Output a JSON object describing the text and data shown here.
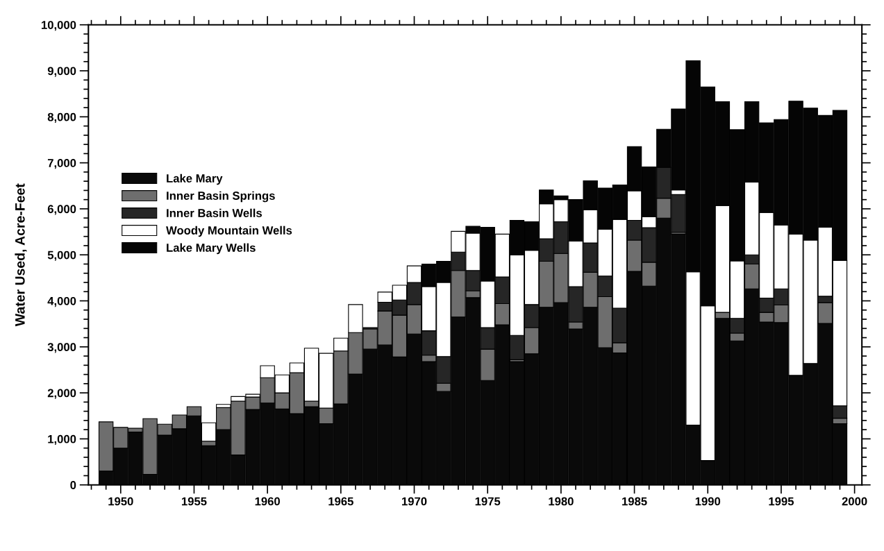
{
  "chart_data": {
    "type": "bar",
    "stacked": true,
    "ylabel": "Water Used, Acre-Feet",
    "x": [
      1949,
      1950,
      1951,
      1952,
      1953,
      1954,
      1955,
      1956,
      1957,
      1958,
      1959,
      1960,
      1961,
      1962,
      1963,
      1964,
      1965,
      1966,
      1967,
      1968,
      1969,
      1970,
      1971,
      1972,
      1973,
      1974,
      1975,
      1976,
      1977,
      1978,
      1979,
      1980,
      1981,
      1982,
      1983,
      1984,
      1985,
      1986,
      1987,
      1988,
      1989,
      1990,
      1991,
      1992,
      1993,
      1994,
      1995,
      1996,
      1997,
      1998,
      1999
    ],
    "series": [
      {
        "name": "Lake Mary",
        "color": "#0a0a0a",
        "values": [
          300,
          800,
          1150,
          230,
          1080,
          1220,
          1500,
          850,
          1200,
          650,
          1640,
          1780,
          1650,
          1550,
          1700,
          1330,
          1760,
          2410,
          2950,
          3040,
          2780,
          3280,
          2680,
          2030,
          3650,
          4070,
          2270,
          3480,
          2680,
          2850,
          3860,
          3960,
          3390,
          3860,
          2980,
          2870,
          4640,
          4320,
          5800,
          5450,
          1300,
          530,
          3620,
          3130,
          4260,
          3540,
          3530,
          2380,
          2640,
          3510,
          1330
        ]
      },
      {
        "name": "Inner Basin Springs",
        "color": "#6e6e6e",
        "values": [
          1070,
          450,
          80,
          1210,
          240,
          300,
          200,
          100,
          480,
          1170,
          270,
          550,
          350,
          890,
          120,
          340,
          1150,
          900,
          440,
          740,
          910,
          640,
          140,
          180,
          1010,
          150,
          680,
          460,
          40,
          570,
          1000,
          1070,
          150,
          760,
          1110,
          220,
          680,
          520,
          430,
          40,
          0,
          0,
          130,
          170,
          540,
          210,
          380,
          0,
          0,
          450,
          120
        ]
      },
      {
        "name": "Inner Basin Wells",
        "color": "#262626",
        "values": [
          0,
          0,
          0,
          0,
          0,
          0,
          0,
          0,
          0,
          0,
          0,
          0,
          0,
          0,
          0,
          0,
          0,
          0,
          30,
          190,
          330,
          480,
          530,
          580,
          400,
          440,
          470,
          580,
          530,
          500,
          490,
          690,
          770,
          640,
          450,
          750,
          430,
          750,
          670,
          820,
          0,
          0,
          0,
          320,
          200,
          310,
          350,
          0,
          0,
          140,
          270
        ]
      },
      {
        "name": "Woody Mountain Wells",
        "color": "#ffffff",
        "values": [
          0,
          0,
          0,
          0,
          0,
          0,
          0,
          400,
          70,
          100,
          60,
          260,
          390,
          210,
          1150,
          1190,
          280,
          610,
          0,
          220,
          320,
          360,
          960,
          1610,
          450,
          810,
          1010,
          930,
          1750,
          1180,
          760,
          480,
          990,
          720,
          1020,
          1930,
          640,
          240,
          0,
          100,
          3330,
          3360,
          2320,
          1250,
          1580,
          1860,
          1390,
          3070,
          2680,
          1500,
          3160
        ]
      },
      {
        "name": "Lake Mary Wells",
        "color": "#050505",
        "values": [
          0,
          0,
          0,
          0,
          0,
          0,
          0,
          0,
          0,
          0,
          0,
          0,
          0,
          0,
          0,
          0,
          0,
          0,
          0,
          0,
          0,
          0,
          490,
          460,
          0,
          150,
          1170,
          0,
          750,
          620,
          300,
          80,
          900,
          630,
          890,
          750,
          960,
          1080,
          830,
          1760,
          4590,
          4760,
          2260,
          2850,
          1750,
          1950,
          2290,
          2890,
          2870,
          2430,
          3260
        ]
      }
    ],
    "xlim": [
      1947.8,
      2000.5
    ],
    "xticks": [
      {
        "value": 1948,
        "label": null
      },
      {
        "value": 1949,
        "label": null
      },
      1950,
      {
        "value": 1951,
        "label": null
      },
      {
        "value": 1952,
        "label": null
      },
      {
        "value": 1953,
        "label": null
      },
      {
        "value": 1954,
        "label": null
      },
      1955,
      {
        "value": 1956,
        "label": null
      },
      {
        "value": 1957,
        "label": null
      },
      {
        "value": 1958,
        "label": null
      },
      {
        "value": 1959,
        "label": null
      },
      1960,
      {
        "value": 1961,
        "label": null
      },
      {
        "value": 1962,
        "label": null
      },
      {
        "value": 1963,
        "label": null
      },
      {
        "value": 1964,
        "label": null
      },
      1965,
      {
        "value": 1966,
        "label": null
      },
      {
        "value": 1967,
        "label": null
      },
      {
        "value": 1968,
        "label": null
      },
      {
        "value": 1969,
        "label": null
      },
      1970,
      {
        "value": 1971,
        "label": null
      },
      {
        "value": 1972,
        "label": null
      },
      {
        "value": 1973,
        "label": null
      },
      {
        "value": 1974,
        "label": null
      },
      1975,
      {
        "value": 1976,
        "label": null
      },
      {
        "value": 1977,
        "label": null
      },
      {
        "value": 1978,
        "label": null
      },
      {
        "value": 1979,
        "label": null
      },
      1980,
      {
        "value": 1981,
        "label": null
      },
      {
        "value": 1982,
        "label": null
      },
      {
        "value": 1983,
        "label": null
      },
      {
        "value": 1984,
        "label": null
      },
      1985,
      {
        "value": 1986,
        "label": null
      },
      {
        "value": 1987,
        "label": null
      },
      {
        "value": 1988,
        "label": null
      },
      {
        "value": 1989,
        "label": null
      },
      1990,
      {
        "value": 1991,
        "label": null
      },
      {
        "value": 1992,
        "label": null
      },
      {
        "value": 1993,
        "label": null
      },
      {
        "value": 1994,
        "label": null
      },
      1995,
      {
        "value": 1996,
        "label": null
      },
      {
        "value": 1997,
        "label": null
      },
      {
        "value": 1998,
        "label": null
      },
      {
        "value": 1999,
        "label": null
      },
      2000
    ],
    "ylim": [
      0,
      10000
    ],
    "yticks": [
      0,
      {
        "value": 200,
        "label": null
      },
      {
        "value": 400,
        "label": null
      },
      {
        "value": 600,
        "label": null
      },
      {
        "value": 800,
        "label": null
      },
      {
        "value": 1000,
        "label": "1,000"
      },
      {
        "value": 1200,
        "label": null
      },
      {
        "value": 1400,
        "label": null
      },
      {
        "value": 1600,
        "label": null
      },
      {
        "value": 1800,
        "label": null
      },
      {
        "value": 2000,
        "label": "2,000"
      },
      {
        "value": 2200,
        "label": null
      },
      {
        "value": 2400,
        "label": null
      },
      {
        "value": 2600,
        "label": null
      },
      {
        "value": 2800,
        "label": null
      },
      {
        "value": 3000,
        "label": "3,000"
      },
      {
        "value": 3200,
        "label": null
      },
      {
        "value": 3400,
        "label": null
      },
      {
        "value": 3600,
        "label": null
      },
      {
        "value": 3800,
        "label": null
      },
      {
        "value": 4000,
        "label": "4,000"
      },
      {
        "value": 4200,
        "label": null
      },
      {
        "value": 4400,
        "label": null
      },
      {
        "value": 4600,
        "label": null
      },
      {
        "value": 4800,
        "label": null
      },
      {
        "value": 5000,
        "label": "5,000"
      },
      {
        "value": 5200,
        "label": null
      },
      {
        "value": 5400,
        "label": null
      },
      {
        "value": 5600,
        "label": null
      },
      {
        "value": 5800,
        "label": null
      },
      {
        "value": 6000,
        "label": "6,000"
      },
      {
        "value": 6200,
        "label": null
      },
      {
        "value": 6400,
        "label": null
      },
      {
        "value": 6600,
        "label": null
      },
      {
        "value": 6800,
        "label": null
      },
      {
        "value": 7000,
        "label": "7,000"
      },
      {
        "value": 7200,
        "label": null
      },
      {
        "value": 7400,
        "label": null
      },
      {
        "value": 7600,
        "label": null
      },
      {
        "value": 7800,
        "label": null
      },
      {
        "value": 8000,
        "label": "8,000"
      },
      {
        "value": 8200,
        "label": null
      },
      {
        "value": 8400,
        "label": null
      },
      {
        "value": 8600,
        "label": null
      },
      {
        "value": 8800,
        "label": null
      },
      {
        "value": 9000,
        "label": "9,000"
      },
      {
        "value": 9200,
        "label": null
      },
      {
        "value": 9400,
        "label": null
      },
      {
        "value": 9600,
        "label": null
      },
      {
        "value": 9800,
        "label": null
      },
      {
        "value": 10000,
        "label": "10,000"
      }
    ],
    "grid": false,
    "legend": "upper left"
  }
}
